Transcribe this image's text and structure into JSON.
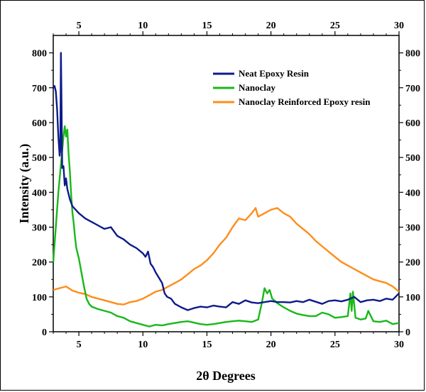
{
  "chart_data": {
    "type": "line",
    "title": "",
    "xlabel": "2θ Degrees",
    "ylabel": "Intensity (a.u.)",
    "xlim": [
      3,
      30
    ],
    "ylim": [
      0,
      850
    ],
    "x_ticks": [
      5,
      10,
      15,
      20,
      25,
      30
    ],
    "y_ticks": [
      0,
      100,
      200,
      300,
      400,
      500,
      600,
      700,
      800
    ],
    "grid": false,
    "legend_position": "top-right",
    "series": [
      {
        "name": "Neat Epoxy Resin",
        "color": "#0d1a8a",
        "x": [
          3.0,
          3.1,
          3.2,
          3.3,
          3.4,
          3.5,
          3.55,
          3.6,
          3.65,
          3.7,
          3.8,
          3.9,
          4.0,
          4.1,
          4.3,
          4.5,
          5.0,
          5.5,
          6.0,
          6.5,
          7.0,
          7.5,
          8.0,
          8.5,
          9.0,
          9.5,
          10.0,
          10.2,
          10.4,
          10.6,
          10.8,
          11.0,
          11.5,
          11.7,
          11.9,
          12.2,
          12.5,
          13.0,
          13.5,
          14.0,
          14.5,
          15.0,
          15.5,
          16.0,
          16.5,
          17.0,
          17.5,
          18.0,
          18.5,
          19.0,
          19.5,
          20.0,
          20.5,
          21.0,
          21.5,
          22.0,
          22.5,
          23.0,
          23.5,
          24.0,
          24.5,
          25.0,
          25.5,
          26.0,
          26.5,
          27.0,
          27.5,
          28.0,
          28.5,
          29.0,
          29.5,
          30.0
        ],
        "values": [
          700,
          705,
          690,
          640,
          560,
          505,
          520,
          800,
          650,
          470,
          475,
          420,
          440,
          410,
          380,
          360,
          340,
          325,
          315,
          305,
          295,
          300,
          275,
          265,
          250,
          240,
          225,
          215,
          230,
          195,
          185,
          170,
          140,
          110,
          100,
          95,
          80,
          70,
          62,
          68,
          72,
          70,
          75,
          72,
          70,
          85,
          80,
          90,
          84,
          82,
          85,
          88,
          85,
          85,
          84,
          88,
          85,
          92,
          86,
          80,
          88,
          90,
          87,
          92,
          100,
          85,
          90,
          92,
          88,
          95,
          92,
          110
        ]
      },
      {
        "name": "Nanoclay",
        "color": "#18b818",
        "x": [
          3.0,
          3.1,
          3.2,
          3.4,
          3.6,
          3.8,
          3.9,
          4.0,
          4.1,
          4.2,
          4.3,
          4.4,
          4.5,
          4.6,
          4.7,
          4.8,
          5.0,
          5.2,
          5.4,
          5.6,
          5.8,
          6.0,
          6.5,
          7.0,
          7.5,
          8.0,
          8.5,
          9.0,
          9.5,
          10.0,
          10.5,
          11.0,
          11.5,
          12.0,
          12.5,
          13.0,
          13.5,
          14.0,
          14.5,
          15.0,
          15.5,
          16.0,
          16.5,
          17.0,
          17.5,
          18.0,
          18.5,
          19.0,
          19.3,
          19.5,
          19.7,
          19.9,
          20.1,
          20.5,
          21.0,
          21.5,
          22.0,
          22.5,
          23.0,
          23.5,
          24.0,
          24.5,
          25.0,
          25.5,
          26.0,
          26.2,
          26.3,
          26.4,
          26.6,
          27.0,
          27.4,
          27.6,
          28.0,
          28.5,
          29.0,
          29.5,
          30.0
        ],
        "values": [
          200,
          250,
          300,
          400,
          480,
          560,
          590,
          560,
          580,
          510,
          460,
          390,
          340,
          310,
          270,
          240,
          210,
          170,
          130,
          95,
          80,
          72,
          65,
          60,
          55,
          45,
          40,
          30,
          25,
          20,
          15,
          20,
          18,
          22,
          25,
          28,
          30,
          26,
          22,
          20,
          22,
          25,
          28,
          30,
          32,
          30,
          28,
          35,
          85,
          125,
          110,
          120,
          95,
          82,
          70,
          60,
          52,
          48,
          45,
          45,
          55,
          50,
          40,
          42,
          45,
          110,
          60,
          115,
          40,
          35,
          38,
          60,
          30,
          28,
          32,
          22,
          25
        ]
      },
      {
        "name": "Nanoclay Reinforced Epoxy resin",
        "color": "#ff8c1a",
        "x": [
          3.0,
          3.5,
          4.0,
          4.5,
          5.0,
          5.5,
          6.0,
          6.5,
          7.0,
          7.5,
          8.0,
          8.5,
          9.0,
          9.5,
          10.0,
          10.5,
          11.0,
          11.5,
          12.0,
          12.5,
          13.0,
          13.5,
          14.0,
          14.5,
          15.0,
          15.5,
          16.0,
          16.5,
          17.0,
          17.5,
          18.0,
          18.5,
          18.8,
          19.0,
          19.5,
          20.0,
          20.5,
          21.0,
          21.5,
          22.0,
          22.5,
          23.0,
          23.5,
          24.0,
          24.5,
          25.0,
          25.5,
          26.0,
          26.5,
          27.0,
          27.5,
          28.0,
          28.5,
          29.0,
          29.5,
          30.0
        ],
        "values": [
          120,
          125,
          130,
          118,
          112,
          108,
          100,
          95,
          90,
          85,
          80,
          78,
          85,
          88,
          95,
          105,
          115,
          120,
          130,
          140,
          150,
          165,
          180,
          190,
          205,
          225,
          250,
          270,
          300,
          325,
          320,
          340,
          355,
          330,
          340,
          350,
          355,
          340,
          330,
          310,
          295,
          280,
          260,
          245,
          230,
          215,
          200,
          190,
          180,
          170,
          160,
          150,
          145,
          140,
          130,
          115
        ]
      }
    ]
  }
}
